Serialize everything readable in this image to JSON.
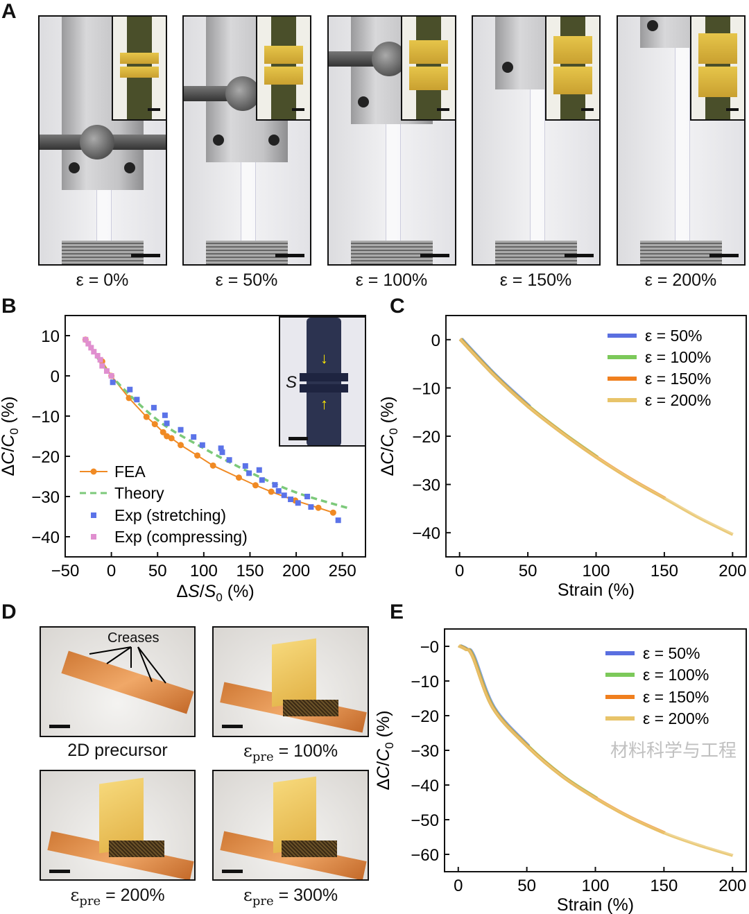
{
  "panel_labels": [
    "A",
    "B",
    "C",
    "D",
    "E"
  ],
  "panelA": {
    "captions": [
      "ε = 0%",
      "ε = 50%",
      "ε = 100%",
      "ε = 150%",
      "ε = 200%"
    ]
  },
  "panelB_inset": {
    "label": "S"
  },
  "panelD": {
    "annotation": "Creases",
    "captions": [
      {
        "main": "2D precursor",
        "sub": "",
        "rest": ""
      },
      {
        "main": "ε",
        "sub": "pre",
        "rest": " = 100%"
      },
      {
        "main": "ε",
        "sub": "pre",
        "rest": " = 200%"
      },
      {
        "main": "ε",
        "sub": "pre",
        "rest": " = 300%"
      }
    ]
  },
  "watermark": "材料科学与工程",
  "chart_data": [
    {
      "id": "B",
      "type": "scatter",
      "xlabel": {
        "delta": "Δ",
        "var": "S",
        "slash": "/",
        "var2": "S",
        "sub": "0",
        "unit": " (%)"
      },
      "ylabel": {
        "delta": "Δ",
        "var": "C",
        "slash": "/",
        "var2": "C",
        "sub": "0",
        "unit": " (%)"
      },
      "xlim": [
        -50,
        275
      ],
      "ylim": [
        -45,
        15
      ],
      "xticks": [
        -50,
        0,
        50,
        100,
        150,
        200,
        250
      ],
      "yticks": [
        10,
        0,
        -10,
        -20,
        -30,
        -40
      ],
      "legend_placement": "bottom-left",
      "series": [
        {
          "name": "FEA",
          "style": "line-marker",
          "color": "#f08a24",
          "x": [
            -28,
            -10,
            0,
            19,
            38,
            47,
            56,
            60,
            65,
            75,
            93,
            110,
            138,
            156,
            173,
            199,
            224,
            240
          ],
          "y": [
            9,
            3.6,
            0,
            -5.5,
            -10.2,
            -12,
            -14,
            -15,
            -15.5,
            -17.2,
            -19.8,
            -22.3,
            -25.3,
            -27.2,
            -28.8,
            -31,
            -32.8,
            -34
          ]
        },
        {
          "name": "Theory",
          "style": "dashed",
          "color": "#7cc97a",
          "x": [
            -28,
            0,
            50,
            100,
            150,
            200,
            258
          ],
          "y": [
            9,
            0,
            -11,
            -18,
            -24,
            -29,
            -33
          ]
        },
        {
          "name": "Exp (stretching)",
          "style": "square",
          "color": "#5b73e8",
          "x": [
            1.5,
            20,
            27.6,
            46,
            58,
            60,
            75,
            89,
            98.5,
            118.6,
            120,
            127.6,
            145,
            149,
            160,
            163,
            177,
            181,
            187,
            194,
            202,
            212,
            216,
            245.5
          ],
          "y": [
            -1.6,
            -3.4,
            -5.9,
            -7.9,
            -9.8,
            -11.8,
            -13.4,
            -15.2,
            -17.2,
            -18,
            -19,
            -20.9,
            -22.4,
            -24.2,
            -23.4,
            -25.9,
            -27.1,
            -28.6,
            -29.7,
            -30.7,
            -31.6,
            -30,
            -32.6,
            -35.9
          ]
        },
        {
          "name": "Exp (compressing)",
          "style": "square",
          "color": "#e08fcf",
          "x": [
            -28,
            -25,
            -22,
            -19,
            -15,
            -12,
            -10,
            -5,
            0
          ],
          "y": [
            9,
            8,
            7,
            6,
            5,
            4,
            2.5,
            1.2,
            0
          ]
        }
      ]
    },
    {
      "id": "C",
      "type": "line",
      "xlabel": "Strain (%)",
      "ylabel": {
        "delta": "Δ",
        "var": "C",
        "slash": "/",
        "var2": "C",
        "sub": "0",
        "unit": " (%)"
      },
      "xlim": [
        -10,
        210
      ],
      "ylim": [
        -45,
        5
      ],
      "xticks": [
        0,
        50,
        100,
        150,
        200
      ],
      "yticks": [
        0,
        -10,
        -20,
        -30,
        -40
      ],
      "legend_placement": "top-right",
      "series": [
        {
          "name": "ε = 50%",
          "color": "#5a6fe0",
          "x": [
            0,
            25,
            50
          ],
          "y": [
            0,
            -7.5,
            -14
          ]
        },
        {
          "name": "ε = 100%",
          "color": "#7cc95a",
          "x": [
            0,
            25,
            50,
            75,
            100
          ],
          "y": [
            0,
            -7.5,
            -14,
            -19.5,
            -24.5
          ]
        },
        {
          "name": "ε = 150%",
          "color": "#f07f1e",
          "x": [
            0,
            25,
            50,
            75,
            100,
            125,
            150
          ],
          "y": [
            0,
            -7.5,
            -14,
            -19.5,
            -24.5,
            -29,
            -33
          ]
        },
        {
          "name": "ε = 200%",
          "color": "#e8c46a",
          "x": [
            0,
            25,
            50,
            75,
            100,
            125,
            150,
            175,
            200
          ],
          "y": [
            0,
            -7.5,
            -14,
            -19.5,
            -24.5,
            -29,
            -33,
            -37,
            -40.5
          ]
        }
      ]
    },
    {
      "id": "E",
      "type": "line",
      "xlabel": "Strain (%)",
      "ylabel": {
        "delta": "Δ",
        "var": "C",
        "slash": "/",
        "var2": "C",
        "sub": "0",
        "unit": " (%)"
      },
      "xlim": [
        -10,
        210
      ],
      "ylim": [
        -65,
        5
      ],
      "xticks": [
        0,
        50,
        100,
        150,
        200
      ],
      "yticks": [
        0,
        -10,
        -20,
        -30,
        -40,
        -50,
        -60
      ],
      "ytick_labels": [
        "−0",
        "−10",
        "−20",
        "−30",
        "−40",
        "−50",
        "−60"
      ],
      "legend_placement": "top-right",
      "series": [
        {
          "name": "ε = 50%",
          "color": "#5a6fe0",
          "x": [
            0,
            5,
            10,
            25,
            50
          ],
          "y": [
            0,
            -1,
            -3,
            -18,
            -29
          ]
        },
        {
          "name": "ε = 100%",
          "color": "#7cc95a",
          "x": [
            0,
            5,
            10,
            25,
            50,
            75,
            100
          ],
          "y": [
            0,
            -1,
            -3,
            -18,
            -29,
            -37.5,
            -44
          ]
        },
        {
          "name": "ε = 150%",
          "color": "#f07f1e",
          "x": [
            0,
            5,
            10,
            25,
            50,
            75,
            100,
            125,
            150
          ],
          "y": [
            0,
            -1,
            -3,
            -18,
            -29,
            -37.5,
            -44,
            -49.5,
            -54
          ]
        },
        {
          "name": "ε = 200%",
          "color": "#e8c46a",
          "x": [
            0,
            5,
            10,
            25,
            50,
            75,
            100,
            125,
            150,
            175,
            200
          ],
          "y": [
            0,
            -1,
            -3,
            -18,
            -29,
            -37.5,
            -44,
            -49.5,
            -54,
            -57.5,
            -60.5
          ]
        }
      ]
    }
  ]
}
